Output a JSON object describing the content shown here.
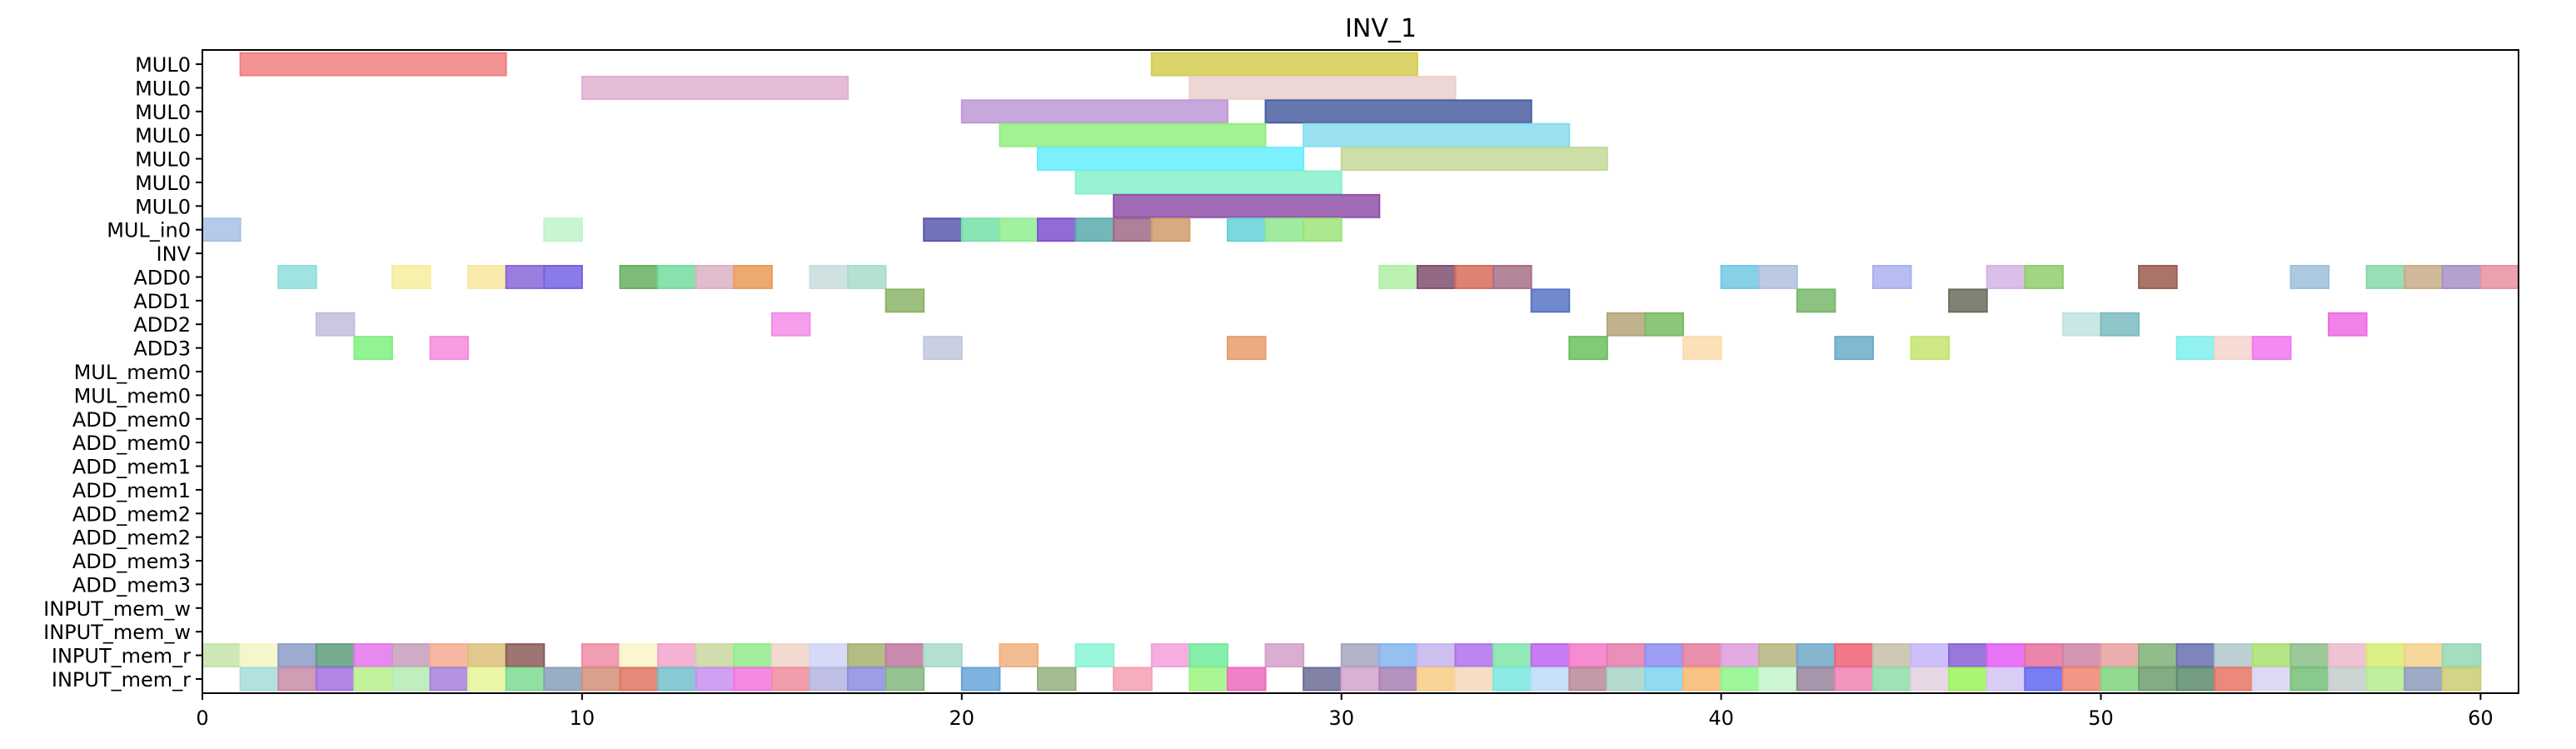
{
  "chart_data": {
    "type": "gantt",
    "title": "INV_1",
    "xlabel": "",
    "ylabel": "",
    "xlim": [
      0,
      61
    ],
    "x_ticks": [
      0,
      10,
      20,
      30,
      40,
      50,
      60
    ],
    "x_tick_labels": [
      "0",
      "10",
      "20",
      "30",
      "40",
      "50",
      "60"
    ],
    "grid": false,
    "rows": [
      "MUL0",
      "MUL0",
      "MUL0",
      "MUL0",
      "MUL0",
      "MUL0",
      "MUL0",
      "MUL_in0",
      "INV",
      "ADD0",
      "ADD1",
      "ADD2",
      "ADD3",
      "MUL_mem0",
      "MUL_mem0",
      "ADD_mem0",
      "ADD_mem0",
      "ADD_mem1",
      "ADD_mem1",
      "ADD_mem2",
      "ADD_mem2",
      "ADD_mem3",
      "ADD_mem3",
      "INPUT_mem_w",
      "INPUT_mem_w",
      "INPUT_mem_r",
      "INPUT_mem_r"
    ],
    "tasks": [
      {
        "row": 0,
        "start": 1,
        "end": 8,
        "color": "#f08080"
      },
      {
        "row": 0,
        "start": 25,
        "end": 32,
        "color": "#d4cc50"
      },
      {
        "row": 1,
        "start": 10,
        "end": 17,
        "color": "#dfb0d0"
      },
      {
        "row": 1,
        "start": 26,
        "end": 33,
        "color": "#ead0cc"
      },
      {
        "row": 2,
        "start": 20,
        "end": 27,
        "color": "#bd99d6"
      },
      {
        "row": 2,
        "start": 28,
        "end": 35,
        "color": "#4a5fa0"
      },
      {
        "row": 3,
        "start": 21,
        "end": 28,
        "color": "#94ee80"
      },
      {
        "row": 3,
        "start": 29,
        "end": 36,
        "color": "#88dcf0"
      },
      {
        "row": 4,
        "start": 22,
        "end": 29,
        "color": "#66eeff"
      },
      {
        "row": 4,
        "start": 30,
        "end": 37,
        "color": "#c4d896"
      },
      {
        "row": 5,
        "start": 23,
        "end": 30,
        "color": "#88f0cc"
      },
      {
        "row": 6,
        "start": 24,
        "end": 31,
        "color": "#9050a8"
      },
      {
        "row": 7,
        "start": 0,
        "end": 1,
        "color": "#a8c0e4"
      },
      {
        "row": 7,
        "start": 9,
        "end": 10,
        "color": "#c0f4c8"
      },
      {
        "row": 7,
        "start": 19,
        "end": 20,
        "color": "#5858b0"
      },
      {
        "row": 7,
        "start": 20,
        "end": 21,
        "color": "#74e0a8"
      },
      {
        "row": 7,
        "start": 21,
        "end": 22,
        "color": "#90ee90"
      },
      {
        "row": 7,
        "start": 22,
        "end": 23,
        "color": "#7e52d0"
      },
      {
        "row": 7,
        "start": 23,
        "end": 24,
        "color": "#5aacac"
      },
      {
        "row": 7,
        "start": 24,
        "end": 25,
        "color": "#a06a88"
      },
      {
        "row": 7,
        "start": 25,
        "end": 26,
        "color": "#d09c6c"
      },
      {
        "row": 7,
        "start": 27,
        "end": 28,
        "color": "#66d0d8"
      },
      {
        "row": 7,
        "start": 28,
        "end": 29,
        "color": "#90e890"
      },
      {
        "row": 7,
        "start": 29,
        "end": 30,
        "color": "#9ce47c"
      },
      {
        "row": 9,
        "start": 2,
        "end": 3,
        "color": "#90dede"
      },
      {
        "row": 9,
        "start": 5,
        "end": 6,
        "color": "#f4ee9c"
      },
      {
        "row": 9,
        "start": 7,
        "end": 8,
        "color": "#f8e89c"
      },
      {
        "row": 9,
        "start": 8,
        "end": 9,
        "color": "#8a66d8"
      },
      {
        "row": 9,
        "start": 9,
        "end": 10,
        "color": "#7464e4"
      },
      {
        "row": 9,
        "start": 11,
        "end": 12,
        "color": "#66b060"
      },
      {
        "row": 9,
        "start": 12,
        "end": 13,
        "color": "#74dca0"
      },
      {
        "row": 9,
        "start": 13,
        "end": 14,
        "color": "#dcb0c4"
      },
      {
        "row": 9,
        "start": 14,
        "end": 15,
        "color": "#ea9a58"
      },
      {
        "row": 9,
        "start": 16,
        "end": 17,
        "color": "#c8dcdc"
      },
      {
        "row": 9,
        "start": 17,
        "end": 18,
        "color": "#a8dccc"
      },
      {
        "row": 9,
        "start": 31,
        "end": 32,
        "color": "#b0eea4"
      },
      {
        "row": 9,
        "start": 32,
        "end": 33,
        "color": "#805070"
      },
      {
        "row": 9,
        "start": 33,
        "end": 34,
        "color": "#d86c5c"
      },
      {
        "row": 9,
        "start": 34,
        "end": 35,
        "color": "#a87088"
      },
      {
        "row": 9,
        "start": 40,
        "end": 41,
        "color": "#72c8e4"
      },
      {
        "row": 9,
        "start": 41,
        "end": 42,
        "color": "#b0c0dc"
      },
      {
        "row": 9,
        "start": 44,
        "end": 45,
        "color": "#aab0ee"
      },
      {
        "row": 9,
        "start": 47,
        "end": 48,
        "color": "#d4b4e4"
      },
      {
        "row": 9,
        "start": 48,
        "end": 49,
        "color": "#90cc70"
      },
      {
        "row": 9,
        "start": 51,
        "end": 52,
        "color": "#9c5c50"
      },
      {
        "row": 9,
        "start": 55,
        "end": 56,
        "color": "#9cc0dc"
      },
      {
        "row": 9,
        "start": 57,
        "end": 58,
        "color": "#88d8a8"
      },
      {
        "row": 9,
        "start": 58,
        "end": 59,
        "color": "#c8ac88"
      },
      {
        "row": 9,
        "start": 59,
        "end": 60,
        "color": "#a890c8"
      },
      {
        "row": 9,
        "start": 60,
        "end": 61,
        "color": "#e890a0"
      },
      {
        "row": 10,
        "start": 18,
        "end": 19,
        "color": "#8cb468"
      },
      {
        "row": 10,
        "start": 35,
        "end": 36,
        "color": "#5874c4"
      },
      {
        "row": 10,
        "start": 42,
        "end": 43,
        "color": "#78b86c"
      },
      {
        "row": 10,
        "start": 46,
        "end": 47,
        "color": "#6c6c5c"
      },
      {
        "row": 11,
        "start": 3,
        "end": 4,
        "color": "#c4bcdc"
      },
      {
        "row": 11,
        "start": 15,
        "end": 16,
        "color": "#f48ce8"
      },
      {
        "row": 11,
        "start": 37,
        "end": 38,
        "color": "#b4a478"
      },
      {
        "row": 11,
        "start": 38,
        "end": 39,
        "color": "#78bc64"
      },
      {
        "row": 11,
        "start": 49,
        "end": 50,
        "color": "#c0e4e0"
      },
      {
        "row": 11,
        "start": 50,
        "end": 51,
        "color": "#7cbcc0"
      },
      {
        "row": 11,
        "start": 56,
        "end": 57,
        "color": "#ee6ce4"
      },
      {
        "row": 12,
        "start": 4,
        "end": 5,
        "color": "#80f080"
      },
      {
        "row": 12,
        "start": 6,
        "end": 7,
        "color": "#f48cdc"
      },
      {
        "row": 12,
        "start": 19,
        "end": 20,
        "color": "#c0c8dc"
      },
      {
        "row": 12,
        "start": 27,
        "end": 28,
        "color": "#e89c6c"
      },
      {
        "row": 12,
        "start": 36,
        "end": 37,
        "color": "#6cc060"
      },
      {
        "row": 12,
        "start": 39,
        "end": 40,
        "color": "#fcdcac"
      },
      {
        "row": 12,
        "start": 43,
        "end": 44,
        "color": "#6cacc8"
      },
      {
        "row": 12,
        "start": 45,
        "end": 46,
        "color": "#c4e470"
      },
      {
        "row": 12,
        "start": 52,
        "end": 53,
        "color": "#80eeec"
      },
      {
        "row": 12,
        "start": 53,
        "end": 54,
        "color": "#f4d4cc"
      },
      {
        "row": 12,
        "start": 54,
        "end": 55,
        "color": "#f078f0"
      },
      {
        "row": 25,
        "start": 0,
        "end": 1,
        "color": "#c4e4a8"
      },
      {
        "row": 25,
        "start": 1,
        "end": 2,
        "color": "#f4f4c4"
      },
      {
        "row": 25,
        "start": 2,
        "end": 3,
        "color": "#8c9cc8"
      },
      {
        "row": 25,
        "start": 3,
        "end": 4,
        "color": "#5e9c7c"
      },
      {
        "row": 25,
        "start": 4,
        "end": 5,
        "color": "#e474ec"
      },
      {
        "row": 25,
        "start": 5,
        "end": 6,
        "color": "#c89cbc"
      },
      {
        "row": 25,
        "start": 6,
        "end": 7,
        "color": "#f4ac90"
      },
      {
        "row": 25,
        "start": 7,
        "end": 8,
        "color": "#dcc07c"
      },
      {
        "row": 25,
        "start": 8,
        "end": 9,
        "color": "#8c5c58"
      },
      {
        "row": 25,
        "start": 10,
        "end": 11,
        "color": "#ee8ca4"
      },
      {
        "row": 25,
        "start": 11,
        "end": 12,
        "color": "#f8f4c8"
      },
      {
        "row": 25,
        "start": 12,
        "end": 13,
        "color": "#f4a4cc"
      },
      {
        "row": 25,
        "start": 13,
        "end": 14,
        "color": "#c8d8a0"
      },
      {
        "row": 25,
        "start": 14,
        "end": 15,
        "color": "#90ec8c"
      },
      {
        "row": 25,
        "start": 15,
        "end": 16,
        "color": "#f0d4c8"
      },
      {
        "row": 25,
        "start": 16,
        "end": 17,
        "color": "#d0d4f4"
      },
      {
        "row": 25,
        "start": 17,
        "end": 18,
        "color": "#a8b070"
      },
      {
        "row": 25,
        "start": 18,
        "end": 19,
        "color": "#c078a0"
      },
      {
        "row": 25,
        "start": 19,
        "end": 20,
        "color": "#a8dcc8"
      },
      {
        "row": 25,
        "start": 21,
        "end": 22,
        "color": "#f0b080"
      },
      {
        "row": 25,
        "start": 23,
        "end": 24,
        "color": "#88f4d4"
      },
      {
        "row": 25,
        "start": 25,
        "end": 26,
        "color": "#f4a0dc"
      },
      {
        "row": 25,
        "start": 26,
        "end": 27,
        "color": "#70ec9c"
      },
      {
        "row": 25,
        "start": 28,
        "end": 29,
        "color": "#d4a0c8"
      },
      {
        "row": 25,
        "start": 30,
        "end": 31,
        "color": "#a4a4c0"
      },
      {
        "row": 25,
        "start": 31,
        "end": 32,
        "color": "#84b4f0"
      },
      {
        "row": 25,
        "start": 32,
        "end": 33,
        "color": "#c4b4ec"
      },
      {
        "row": 25,
        "start": 33,
        "end": 34,
        "color": "#b070ec"
      },
      {
        "row": 25,
        "start": 34,
        "end": 35,
        "color": "#80e4a8"
      },
      {
        "row": 25,
        "start": 35,
        "end": 36,
        "color": "#c064f0"
      },
      {
        "row": 25,
        "start": 36,
        "end": 37,
        "color": "#f478c8"
      },
      {
        "row": 25,
        "start": 37,
        "end": 38,
        "color": "#e47cac"
      },
      {
        "row": 25,
        "start": 38,
        "end": 39,
        "color": "#8c8cf0"
      },
      {
        "row": 25,
        "start": 39,
        "end": 40,
        "color": "#e47c9c"
      },
      {
        "row": 25,
        "start": 40,
        "end": 41,
        "color": "#dc9cdc"
      },
      {
        "row": 25,
        "start": 41,
        "end": 42,
        "color": "#b4b480"
      },
      {
        "row": 25,
        "start": 42,
        "end": 43,
        "color": "#70a8c8"
      },
      {
        "row": 25,
        "start": 43,
        "end": 44,
        "color": "#f06074"
      },
      {
        "row": 25,
        "start": 44,
        "end": 45,
        "color": "#c4c0a8"
      },
      {
        "row": 25,
        "start": 45,
        "end": 46,
        "color": "#c4b4f8"
      },
      {
        "row": 25,
        "start": 46,
        "end": 47,
        "color": "#8860d4"
      },
      {
        "row": 25,
        "start": 47,
        "end": 48,
        "color": "#e45cf4"
      },
      {
        "row": 25,
        "start": 48,
        "end": 49,
        "color": "#e8709c"
      },
      {
        "row": 25,
        "start": 49,
        "end": 50,
        "color": "#cc84a4"
      },
      {
        "row": 25,
        "start": 50,
        "end": 51,
        "color": "#e8a0a0"
      },
      {
        "row": 25,
        "start": 51,
        "end": 52,
        "color": "#80b078"
      },
      {
        "row": 25,
        "start": 52,
        "end": 53,
        "color": "#6870b0"
      },
      {
        "row": 25,
        "start": 53,
        "end": 54,
        "color": "#b0c8cc"
      },
      {
        "row": 25,
        "start": 54,
        "end": 55,
        "color": "#a8e070"
      },
      {
        "row": 25,
        "start": 55,
        "end": 56,
        "color": "#8cc088"
      },
      {
        "row": 25,
        "start": 56,
        "end": 57,
        "color": "#ecb8cc"
      },
      {
        "row": 25,
        "start": 57,
        "end": 58,
        "color": "#d4ec70"
      },
      {
        "row": 25,
        "start": 58,
        "end": 59,
        "color": "#f4d088"
      },
      {
        "row": 25,
        "start": 59,
        "end": 60,
        "color": "#94d8b4"
      },
      {
        "row": 26,
        "start": 1,
        "end": 2,
        "color": "#a4dcd8"
      },
      {
        "row": 26,
        "start": 2,
        "end": 3,
        "color": "#c88ca8"
      },
      {
        "row": 26,
        "start": 3,
        "end": 4,
        "color": "#a470e0"
      },
      {
        "row": 26,
        "start": 4,
        "end": 5,
        "color": "#b8f08c"
      },
      {
        "row": 26,
        "start": 5,
        "end": 6,
        "color": "#b4ecb4"
      },
      {
        "row": 26,
        "start": 6,
        "end": 7,
        "color": "#a880dc"
      },
      {
        "row": 26,
        "start": 7,
        "end": 8,
        "color": "#e8f498"
      },
      {
        "row": 26,
        "start": 8,
        "end": 9,
        "color": "#7cdc90"
      },
      {
        "row": 26,
        "start": 9,
        "end": 10,
        "color": "#88a0b8"
      },
      {
        "row": 26,
        "start": 10,
        "end": 11,
        "color": "#d49078"
      },
      {
        "row": 26,
        "start": 11,
        "end": 12,
        "color": "#e07460"
      },
      {
        "row": 26,
        "start": 12,
        "end": 13,
        "color": "#74c0cc"
      },
      {
        "row": 26,
        "start": 13,
        "end": 14,
        "color": "#c890f0"
      },
      {
        "row": 26,
        "start": 14,
        "end": 15,
        "color": "#f474dc"
      },
      {
        "row": 26,
        "start": 15,
        "end": 16,
        "color": "#f08c9c"
      },
      {
        "row": 26,
        "start": 16,
        "end": 17,
        "color": "#b4b4e0"
      },
      {
        "row": 26,
        "start": 17,
        "end": 18,
        "color": "#8c8ce0"
      },
      {
        "row": 26,
        "start": 18,
        "end": 19,
        "color": "#84b880"
      },
      {
        "row": 26,
        "start": 20,
        "end": 21,
        "color": "#68a4d8"
      },
      {
        "row": 26,
        "start": 22,
        "end": 23,
        "color": "#94b080"
      },
      {
        "row": 26,
        "start": 24,
        "end": 25,
        "color": "#f4a0b0"
      },
      {
        "row": 26,
        "start": 26,
        "end": 27,
        "color": "#9cf480"
      },
      {
        "row": 26,
        "start": 27,
        "end": 28,
        "color": "#ec6cbc"
      },
      {
        "row": 26,
        "start": 29,
        "end": 30,
        "color": "#6c6c98"
      },
      {
        "row": 26,
        "start": 30,
        "end": 31,
        "color": "#d4a4cc"
      },
      {
        "row": 26,
        "start": 31,
        "end": 32,
        "color": "#a880b4"
      },
      {
        "row": 26,
        "start": 32,
        "end": 33,
        "color": "#f8cc84"
      },
      {
        "row": 26,
        "start": 33,
        "end": 34,
        "color": "#f4d8b8"
      },
      {
        "row": 26,
        "start": 34,
        "end": 35,
        "color": "#78e8e0"
      },
      {
        "row": 26,
        "start": 35,
        "end": 36,
        "color": "#bcdcf8"
      },
      {
        "row": 26,
        "start": 36,
        "end": 37,
        "color": "#b88898"
      },
      {
        "row": 26,
        "start": 37,
        "end": 38,
        "color": "#a8d4c8"
      },
      {
        "row": 26,
        "start": 38,
        "end": 39,
        "color": "#7cd4f0"
      },
      {
        "row": 26,
        "start": 39,
        "end": 40,
        "color": "#f8b870"
      },
      {
        "row": 26,
        "start": 40,
        "end": 41,
        "color": "#8cf488"
      },
      {
        "row": 26,
        "start": 41,
        "end": 42,
        "color": "#c4f4cc"
      },
      {
        "row": 26,
        "start": 42,
        "end": 43,
        "color": "#98849c"
      },
      {
        "row": 26,
        "start": 43,
        "end": 44,
        "color": "#f084b4"
      },
      {
        "row": 26,
        "start": 44,
        "end": 45,
        "color": "#90dcac"
      },
      {
        "row": 26,
        "start": 45,
        "end": 46,
        "color": "#e4d0e0"
      },
      {
        "row": 26,
        "start": 46,
        "end": 47,
        "color": "#9cf458"
      },
      {
        "row": 26,
        "start": 47,
        "end": 48,
        "color": "#d4c4f4"
      },
      {
        "row": 26,
        "start": 48,
        "end": 49,
        "color": "#6068f0"
      },
      {
        "row": 26,
        "start": 49,
        "end": 50,
        "color": "#f08470"
      },
      {
        "row": 26,
        "start": 50,
        "end": 51,
        "color": "#80d47c"
      },
      {
        "row": 26,
        "start": 51,
        "end": 52,
        "color": "#709c70"
      },
      {
        "row": 26,
        "start": 52,
        "end": 53,
        "color": "#5c8c6c"
      },
      {
        "row": 26,
        "start": 53,
        "end": 54,
        "color": "#e87464"
      },
      {
        "row": 26,
        "start": 54,
        "end": 55,
        "color": "#d8d4f4"
      },
      {
        "row": 26,
        "start": 55,
        "end": 56,
        "color": "#74c078"
      },
      {
        "row": 26,
        "start": 56,
        "end": 57,
        "color": "#c4cccc"
      },
      {
        "row": 26,
        "start": 57,
        "end": 58,
        "color": "#b4ec90"
      },
      {
        "row": 26,
        "start": 58,
        "end": 59,
        "color": "#8c9cbc"
      },
      {
        "row": 26,
        "start": 59,
        "end": 60,
        "color": "#cccc74"
      }
    ]
  }
}
